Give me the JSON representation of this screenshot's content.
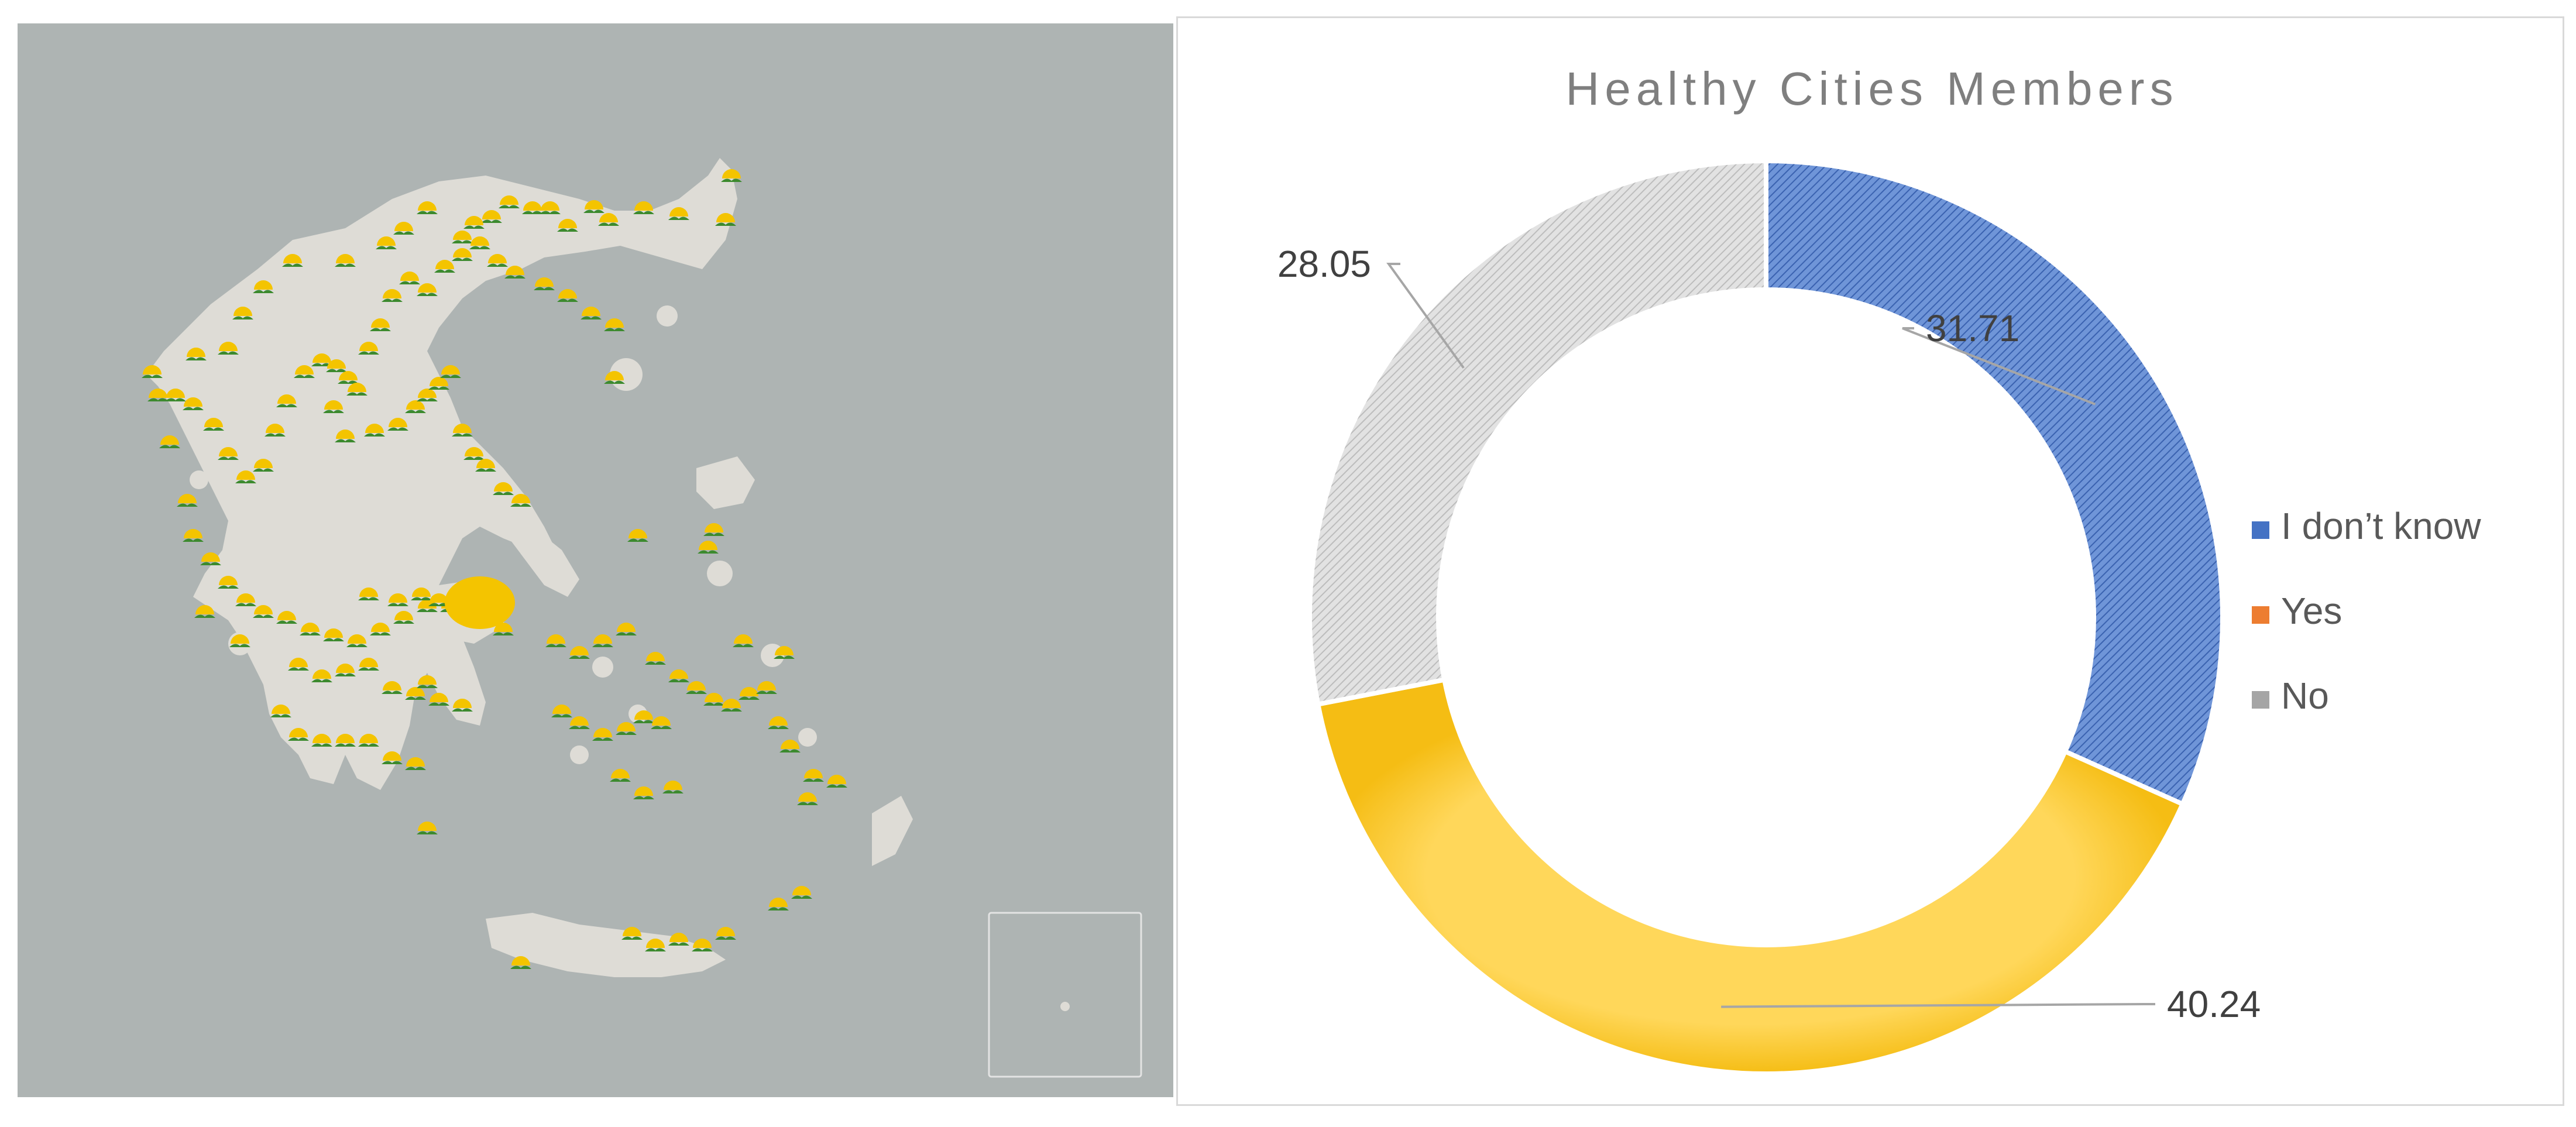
{
  "chart_data": {
    "type": "doughnut",
    "title": "Healthy Cities Members",
    "series": [
      {
        "name": "I don’t know",
        "value": 31.71,
        "label": "31.71",
        "color": "#4472c4",
        "pattern": "diagonal-hatch"
      },
      {
        "name": "Yes",
        "value": 40.24,
        "label": "40.24",
        "color": "#ffc000",
        "pattern": "solid-gradient"
      },
      {
        "name": "No",
        "value": 28.05,
        "label": "28.05",
        "color": "#a5a5a5",
        "pattern": "diagonal-hatch"
      }
    ],
    "legend_position": "right",
    "start_angle": "top",
    "direction": "clockwise"
  },
  "map": {
    "description_visible": false,
    "land_color": "#dedcd6",
    "sea_color": "#aeb4b3",
    "marker_icon": "sun-hills-icon",
    "marker_color": "#f2c200",
    "inset_box": true
  }
}
